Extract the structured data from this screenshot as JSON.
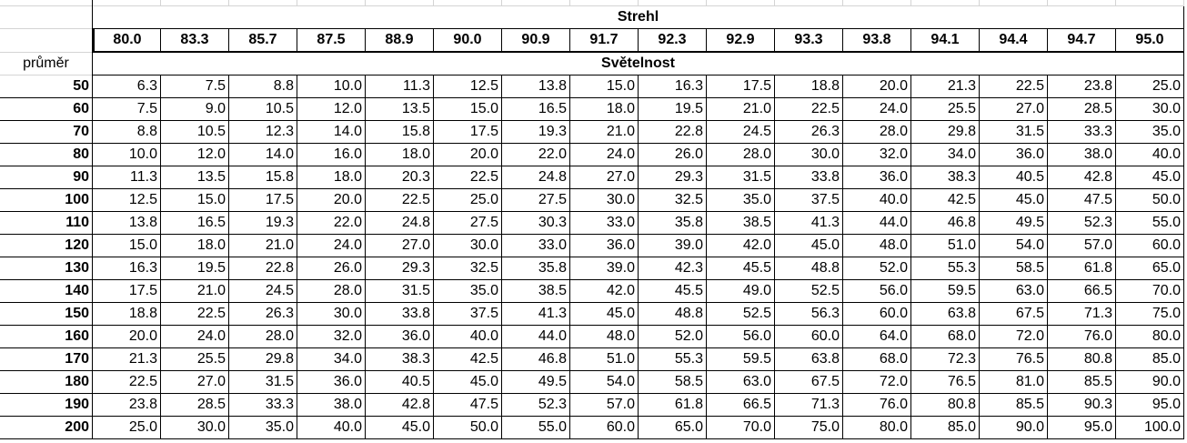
{
  "table": {
    "title": "Strehl",
    "column_headers": [
      "80.0",
      "83.3",
      "85.7",
      "87.5",
      "88.9",
      "90.0",
      "90.9",
      "91.7",
      "92.3",
      "92.9",
      "93.3",
      "93.8",
      "94.1",
      "94.4",
      "94.7",
      "95.0"
    ],
    "row_header_label": "průměr",
    "subtitle": "Světelnost",
    "rows": [
      {
        "label": "50",
        "values": [
          "6.3",
          "7.5",
          "8.8",
          "10.0",
          "11.3",
          "12.5",
          "13.8",
          "15.0",
          "16.3",
          "17.5",
          "18.8",
          "20.0",
          "21.3",
          "22.5",
          "23.8",
          "25.0"
        ]
      },
      {
        "label": "60",
        "values": [
          "7.5",
          "9.0",
          "10.5",
          "12.0",
          "13.5",
          "15.0",
          "16.5",
          "18.0",
          "19.5",
          "21.0",
          "22.5",
          "24.0",
          "25.5",
          "27.0",
          "28.5",
          "30.0"
        ]
      },
      {
        "label": "70",
        "values": [
          "8.8",
          "10.5",
          "12.3",
          "14.0",
          "15.8",
          "17.5",
          "19.3",
          "21.0",
          "22.8",
          "24.5",
          "26.3",
          "28.0",
          "29.8",
          "31.5",
          "33.3",
          "35.0"
        ]
      },
      {
        "label": "80",
        "values": [
          "10.0",
          "12.0",
          "14.0",
          "16.0",
          "18.0",
          "20.0",
          "22.0",
          "24.0",
          "26.0",
          "28.0",
          "30.0",
          "32.0",
          "34.0",
          "36.0",
          "38.0",
          "40.0"
        ]
      },
      {
        "label": "90",
        "values": [
          "11.3",
          "13.5",
          "15.8",
          "18.0",
          "20.3",
          "22.5",
          "24.8",
          "27.0",
          "29.3",
          "31.5",
          "33.8",
          "36.0",
          "38.3",
          "40.5",
          "42.8",
          "45.0"
        ]
      },
      {
        "label": "100",
        "values": [
          "12.5",
          "15.0",
          "17.5",
          "20.0",
          "22.5",
          "25.0",
          "27.5",
          "30.0",
          "32.5",
          "35.0",
          "37.5",
          "40.0",
          "42.5",
          "45.0",
          "47.5",
          "50.0"
        ]
      },
      {
        "label": "110",
        "values": [
          "13.8",
          "16.5",
          "19.3",
          "22.0",
          "24.8",
          "27.5",
          "30.3",
          "33.0",
          "35.8",
          "38.5",
          "41.3",
          "44.0",
          "46.8",
          "49.5",
          "52.3",
          "55.0"
        ]
      },
      {
        "label": "120",
        "values": [
          "15.0",
          "18.0",
          "21.0",
          "24.0",
          "27.0",
          "30.0",
          "33.0",
          "36.0",
          "39.0",
          "42.0",
          "45.0",
          "48.0",
          "51.0",
          "54.0",
          "57.0",
          "60.0"
        ]
      },
      {
        "label": "130",
        "values": [
          "16.3",
          "19.5",
          "22.8",
          "26.0",
          "29.3",
          "32.5",
          "35.8",
          "39.0",
          "42.3",
          "45.5",
          "48.8",
          "52.0",
          "55.3",
          "58.5",
          "61.8",
          "65.0"
        ]
      },
      {
        "label": "140",
        "values": [
          "17.5",
          "21.0",
          "24.5",
          "28.0",
          "31.5",
          "35.0",
          "38.5",
          "42.0",
          "45.5",
          "49.0",
          "52.5",
          "56.0",
          "59.5",
          "63.0",
          "66.5",
          "70.0"
        ]
      },
      {
        "label": "150",
        "values": [
          "18.8",
          "22.5",
          "26.3",
          "30.0",
          "33.8",
          "37.5",
          "41.3",
          "45.0",
          "48.8",
          "52.5",
          "56.3",
          "60.0",
          "63.8",
          "67.5",
          "71.3",
          "75.0"
        ]
      },
      {
        "label": "160",
        "values": [
          "20.0",
          "24.0",
          "28.0",
          "32.0",
          "36.0",
          "40.0",
          "44.0",
          "48.0",
          "52.0",
          "56.0",
          "60.0",
          "64.0",
          "68.0",
          "72.0",
          "76.0",
          "80.0"
        ]
      },
      {
        "label": "170",
        "values": [
          "21.3",
          "25.5",
          "29.8",
          "34.0",
          "38.3",
          "42.5",
          "46.8",
          "51.0",
          "55.3",
          "59.5",
          "63.8",
          "68.0",
          "72.3",
          "76.5",
          "80.8",
          "85.0"
        ]
      },
      {
        "label": "180",
        "values": [
          "22.5",
          "27.0",
          "31.5",
          "36.0",
          "40.5",
          "45.0",
          "49.5",
          "54.0",
          "58.5",
          "63.0",
          "67.5",
          "72.0",
          "76.5",
          "81.0",
          "85.5",
          "90.0"
        ]
      },
      {
        "label": "190",
        "values": [
          "23.8",
          "28.5",
          "33.3",
          "38.0",
          "42.8",
          "47.5",
          "52.3",
          "57.0",
          "61.8",
          "66.5",
          "71.3",
          "76.0",
          "80.8",
          "85.5",
          "90.3",
          "95.0"
        ]
      },
      {
        "label": "200",
        "values": [
          "25.0",
          "30.0",
          "35.0",
          "40.0",
          "45.0",
          "50.0",
          "55.0",
          "60.0",
          "65.0",
          "70.0",
          "75.0",
          "80.0",
          "85.0",
          "90.0",
          "95.0",
          "100.0"
        ]
      }
    ]
  }
}
